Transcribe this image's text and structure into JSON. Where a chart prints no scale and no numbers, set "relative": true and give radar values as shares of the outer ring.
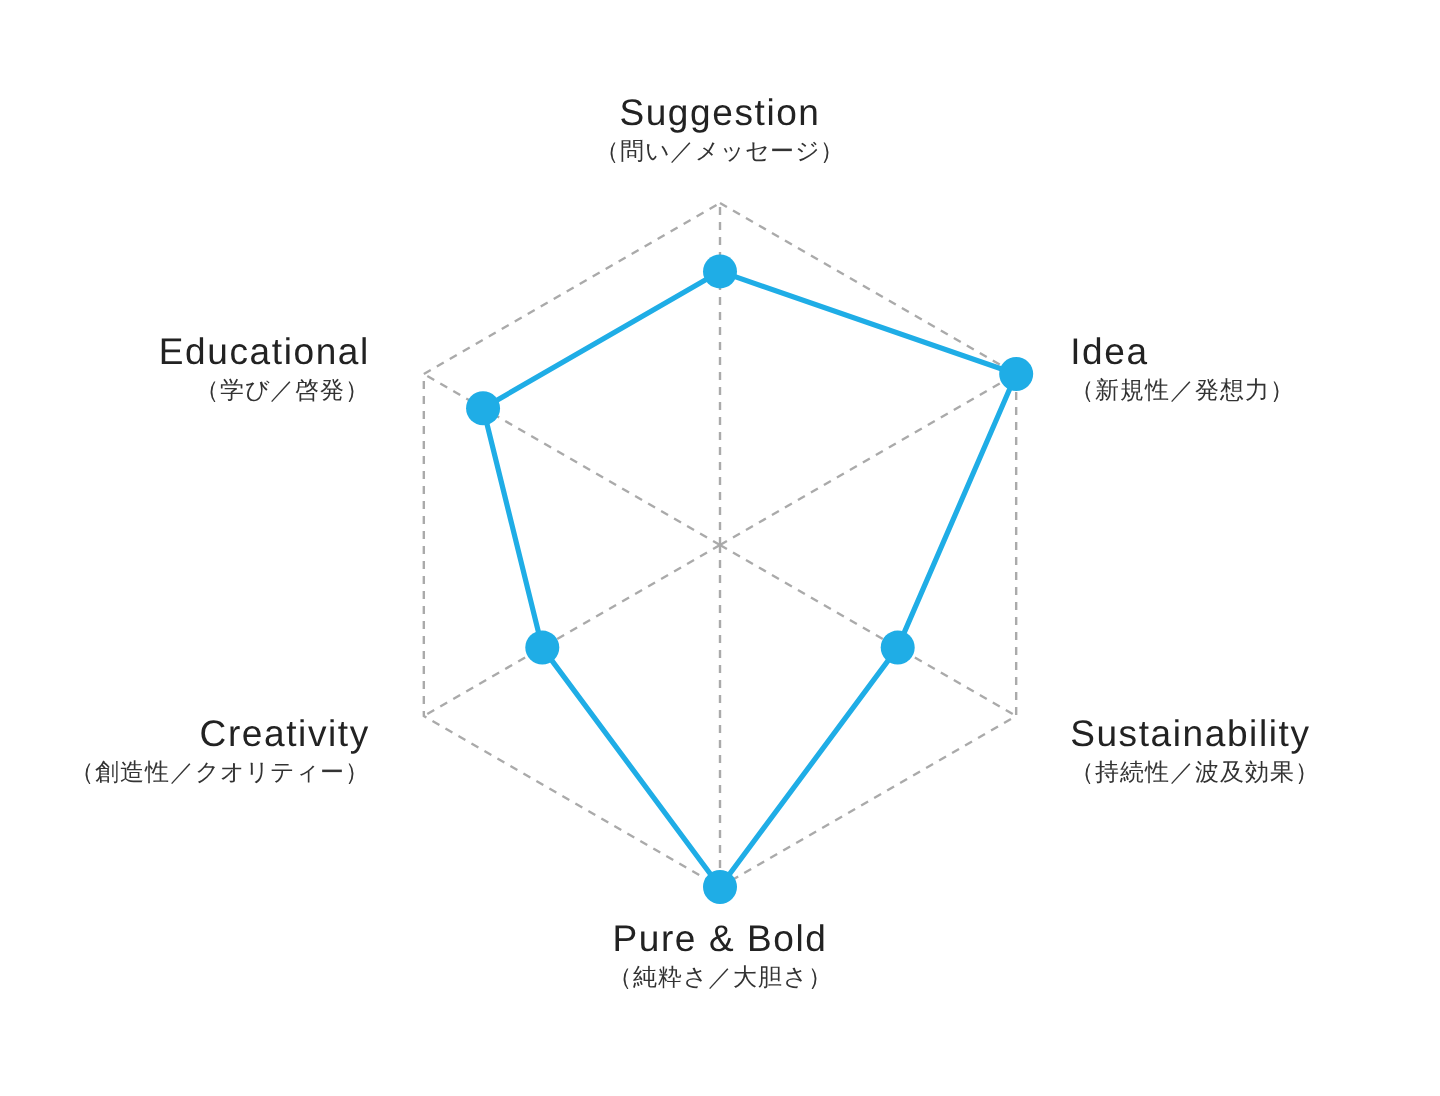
{
  "chart_data": {
    "type": "radar",
    "categories": [
      "Suggestion\n（問い／メッセージ）",
      "Idea\n（新規性／発想力）",
      "Sustainability\n（持続性／波及効果）",
      "Pure & Bold\n（純粋さ／大胆さ）",
      "Creativity\n（創造性／クオリティー）",
      "Educational\n（学び／啓発）"
    ],
    "series": [
      {
        "color": "#1fade6",
        "values": [
          0.8,
          1,
          0.6,
          1,
          0.6,
          0.8
        ]
      }
    ],
    "relative": true,
    "grid": true,
    "marker": "circle",
    "line_style": "solid"
  }
}
